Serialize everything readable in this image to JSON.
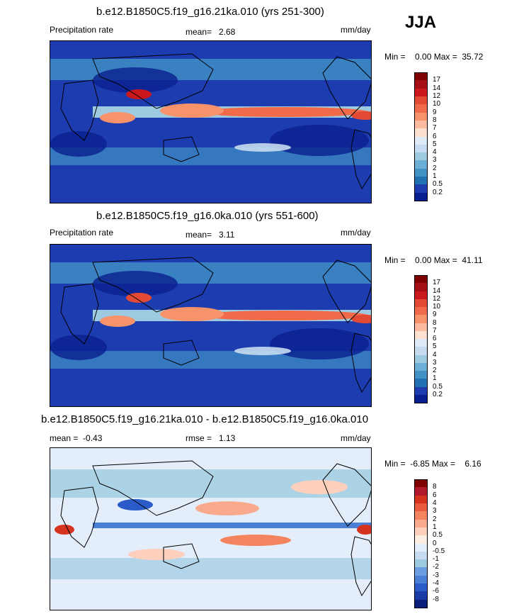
{
  "season": "JJA",
  "panels": [
    {
      "title": "b.e12.B1850C5.f19_g16.21ka.010 (yrs 251-300)",
      "left_label": "Precipitation rate",
      "mean_label": "mean=",
      "mean_value": "2.68",
      "units": "mm/day",
      "minmax": "Min =    0.00 Max =  35.72",
      "colorbar_labels": [
        "17",
        "14",
        "12",
        "10",
        "9",
        "8",
        "7",
        "6",
        "5",
        "4",
        "3",
        "2",
        "1",
        "0.5",
        "0.2"
      ],
      "colors": [
        "#7f0000",
        "#a50f15",
        "#cb181d",
        "#e34a33",
        "#f16a4a",
        "#f7936b",
        "#fcbba1",
        "#fde0cf",
        "#deebf7",
        "#c6dbef",
        "#9ecae1",
        "#6baed6",
        "#4292c6",
        "#2171b5",
        "#1c3cb0",
        "#0a1f8f"
      ]
    },
    {
      "title": "b.e12.B1850C5.f19_g16.0ka.010 (yrs 551-600)",
      "left_label": "Precipitation rate",
      "mean_label": "mean=",
      "mean_value": "3.11",
      "units": "mm/day",
      "minmax": "Min =    0.00 Max =  41.11",
      "colorbar_labels": [
        "17",
        "14",
        "12",
        "10",
        "9",
        "8",
        "7",
        "6",
        "5",
        "4",
        "3",
        "2",
        "1",
        "0.5",
        "0.2"
      ],
      "colors": [
        "#7f0000",
        "#a50f15",
        "#cb181d",
        "#e34a33",
        "#f16a4a",
        "#f7936b",
        "#fcbba1",
        "#fde0cf",
        "#deebf7",
        "#c6dbef",
        "#9ecae1",
        "#6baed6",
        "#4292c6",
        "#2171b5",
        "#1c3cb0",
        "#0a1f8f"
      ]
    },
    {
      "title": "b.e12.B1850C5.f19_g16.21ka.010 - b.e12.B1850C5.f19_g16.0ka.010",
      "left_label": "mean =  -0.43",
      "mean_label": "rmse =",
      "mean_value": "1.13",
      "units": "mm/day",
      "minmax": "Min =  -6.85 Max =    6.16",
      "colorbar_labels": [
        "8",
        "6",
        "4",
        "3",
        "2",
        "1",
        "0.5",
        "0",
        "-0.5",
        "-1",
        "-2",
        "-3",
        "-4",
        "-6",
        "-8"
      ],
      "colors": [
        "#7f0000",
        "#b2182b",
        "#d6331e",
        "#ea5a3c",
        "#f4845f",
        "#f9a98c",
        "#fcd0bd",
        "#fdeee4",
        "#e3eefa",
        "#c6dbef",
        "#9ecae1",
        "#6b9ee0",
        "#4a7fd6",
        "#2b5bc8",
        "#1a3aa8",
        "#0a1f7a"
      ]
    }
  ],
  "chart_data": [
    {
      "type": "heatmap",
      "title": "b.e12.B1850C5.f19_g16.21ka.010 (yrs 251-300)",
      "variable": "Precipitation rate",
      "units": "mm/day",
      "mean": 2.68,
      "min": 0.0,
      "max": 35.72,
      "colorbar_levels": [
        0.2,
        0.5,
        1,
        2,
        3,
        4,
        5,
        6,
        7,
        8,
        9,
        10,
        12,
        14,
        17
      ]
    },
    {
      "type": "heatmap",
      "title": "b.e12.B1850C5.f19_g16.0ka.010 (yrs 551-600)",
      "variable": "Precipitation rate",
      "units": "mm/day",
      "mean": 3.11,
      "min": 0.0,
      "max": 41.11,
      "colorbar_levels": [
        0.2,
        0.5,
        1,
        2,
        3,
        4,
        5,
        6,
        7,
        8,
        9,
        10,
        12,
        14,
        17
      ]
    },
    {
      "type": "heatmap",
      "title": "b.e12.B1850C5.f19_g16.21ka.010 - b.e12.B1850C5.f19_g16.0ka.010",
      "units": "mm/day",
      "mean": -0.43,
      "rmse": 1.13,
      "min": -6.85,
      "max": 6.16,
      "colorbar_levels": [
        -8,
        -6,
        -4,
        -3,
        -2,
        -1,
        -0.5,
        0,
        0.5,
        1,
        2,
        3,
        4,
        6,
        8
      ]
    }
  ]
}
